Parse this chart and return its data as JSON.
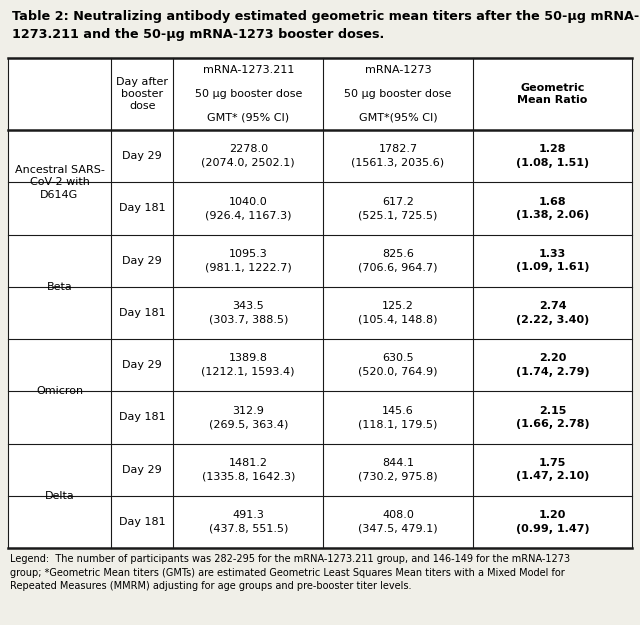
{
  "title_line1": "Table 2: Neutralizing antibody estimated geometric mean titers after the 50-μg mRNA-",
  "title_line2": "1273.211 and the 50-μg mRNA-1273 booster doses.",
  "col_headers_line1": [
    "",
    "Day after",
    "mRNA-1273.211",
    "mRNA-1273",
    "Geometric"
  ],
  "col_headers_line2": [
    "",
    "booster",
    "50 μg booster dose",
    "50 μg booster dose",
    "Mean Ratio"
  ],
  "col_headers_line3": [
    "",
    "dose",
    "GMT* (95% CI)",
    "GMT*(95% CI)",
    ""
  ],
  "rows": [
    {
      "label": "Ancestral SARS-\nCoV-2 with\nD614G",
      "day": "Day 29",
      "mrna211_v": "2278.0",
      "mrna211_ci": "(2074.0, 2502.1)",
      "mrna1273_v": "1782.7",
      "mrna1273_ci": "(1561.3, 2035.6)",
      "gmr_v": "1.28",
      "gmr_ci": "(1.08, 1.51)"
    },
    {
      "label": "",
      "day": "Day 181",
      "mrna211_v": "1040.0",
      "mrna211_ci": "(926.4, 1167.3)",
      "mrna1273_v": "617.2",
      "mrna1273_ci": "(525.1, 725.5)",
      "gmr_v": "1.68",
      "gmr_ci": "(1.38, 2.06)"
    },
    {
      "label": "Beta",
      "day": "Day 29",
      "mrna211_v": "1095.3",
      "mrna211_ci": "(981.1, 1222.7)",
      "mrna1273_v": "825.6",
      "mrna1273_ci": "(706.6, 964.7)",
      "gmr_v": "1.33",
      "gmr_ci": "(1.09, 1.61)"
    },
    {
      "label": "",
      "day": "Day 181",
      "mrna211_v": "343.5",
      "mrna211_ci": "(303.7, 388.5)",
      "mrna1273_v": "125.2",
      "mrna1273_ci": "(105.4, 148.8)",
      "gmr_v": "2.74",
      "gmr_ci": "(2.22, 3.40)"
    },
    {
      "label": "Omicron",
      "day": "Day 29",
      "mrna211_v": "1389.8",
      "mrna211_ci": "(1212.1, 1593.4)",
      "mrna1273_v": "630.5",
      "mrna1273_ci": "(520.0, 764.9)",
      "gmr_v": "2.20",
      "gmr_ci": "(1.74, 2.79)"
    },
    {
      "label": "",
      "day": "Day 181",
      "mrna211_v": "312.9",
      "mrna211_ci": "(269.5, 363.4)",
      "mrna1273_v": "145.6",
      "mrna1273_ci": "(118.1, 179.5)",
      "gmr_v": "2.15",
      "gmr_ci": "(1.66, 2.78)"
    },
    {
      "label": "Delta",
      "day": "Day 29",
      "mrna211_v": "1481.2",
      "mrna211_ci": "(1335.8, 1642.3)",
      "mrna1273_v": "844.1",
      "mrna1273_ci": "(730.2, 975.8)",
      "gmr_v": "1.75",
      "gmr_ci": "(1.47, 2.10)"
    },
    {
      "label": "",
      "day": "Day 181",
      "mrna211_v": "491.3",
      "mrna211_ci": "(437.8, 551.5)",
      "mrna1273_v": "408.0",
      "mrna1273_ci": "(347.5, 479.1)",
      "gmr_v": "1.20",
      "gmr_ci": "(0.99, 1.47)"
    }
  ],
  "legend": "Legend:  The number of participants was 282-295 for the mRNA-1273.211 group, and 146-149 for the mRNA-1273\ngroup; *Geometric Mean titers (GMTs) are estimated Geometric Least Squares Mean titers with a Mixed Model for\nRepeated Measures (MMRM) adjusting for age groups and pre-booster titer levels.",
  "bg_color": "#f0efe8",
  "table_bg": "#ffffff",
  "border_color": "#1a1a1a",
  "text_color": "#000000",
  "title_fontsize": 9.2,
  "header_fontsize": 8.0,
  "cell_fontsize": 8.0,
  "legend_fontsize": 7.0
}
